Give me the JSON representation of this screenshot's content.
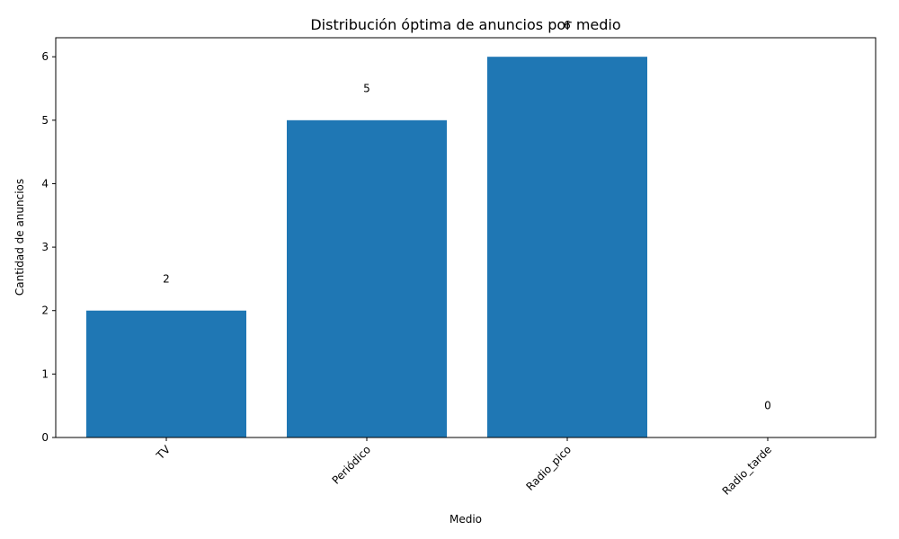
{
  "chart_data": {
    "type": "bar",
    "title": "Distribución óptima de anuncios por medio",
    "xlabel": "Medio",
    "ylabel": "Cantidad de anuncios",
    "categories": [
      "TV",
      "Periódico",
      "Radio_pico",
      "Radio_tarde"
    ],
    "values": [
      2,
      5,
      6,
      0
    ],
    "data_labels": [
      "2",
      "5",
      "6",
      "0"
    ],
    "y_ticks": [
      0,
      1,
      2,
      3,
      4,
      5,
      6
    ],
    "ylim": [
      0,
      6.3
    ],
    "x_tick_rotation_deg": 45,
    "grid": false,
    "legend": "none",
    "colors": {
      "bar": "#1f77b4",
      "axis": "#000000",
      "background": "#ffffff"
    }
  }
}
